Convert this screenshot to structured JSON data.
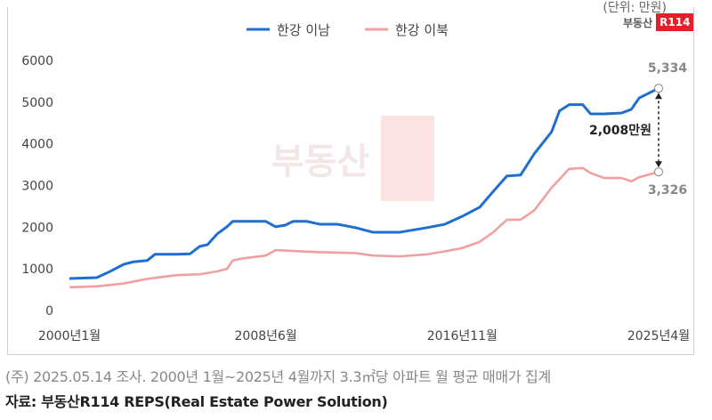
{
  "unit_label": "(단위: 만원)",
  "logo": {
    "text": "부동산",
    "badge": "R114"
  },
  "footnote": "(주) 2025.05.14 조사. 2000년 1월~2025년 4월까지 3.3㎡당 아파트 월 평균 매매가 집계",
  "source": "자료: 부동산R114 REPS(Real Estate Power Solution)",
  "chart_data": {
    "type": "line",
    "ylim": [
      0,
      6000
    ],
    "yticks": [
      0,
      1000,
      2000,
      3000,
      4000,
      5000,
      6000
    ],
    "xlim": [
      "2000-01",
      "2025-04"
    ],
    "xticks": [
      {
        "date": "2000-01",
        "label": "2000년1월"
      },
      {
        "date": "2008-06",
        "label": "2008년6월"
      },
      {
        "date": "2016-11",
        "label": "2016년11월"
      },
      {
        "date": "2025-04",
        "label": "2025년4월"
      }
    ],
    "grid": false,
    "legend": "top",
    "series": [
      {
        "name": "한강 이남",
        "color": "#1f6fd1",
        "end_label": "5,334",
        "points": [
          [
            "2000-01",
            770
          ],
          [
            "2001-03",
            790
          ],
          [
            "2001-10",
            940
          ],
          [
            "2002-05",
            1110
          ],
          [
            "2002-10",
            1170
          ],
          [
            "2003-05",
            1200
          ],
          [
            "2003-09",
            1350
          ],
          [
            "2004-08",
            1350
          ],
          [
            "2005-03",
            1360
          ],
          [
            "2005-08",
            1540
          ],
          [
            "2005-12",
            1580
          ],
          [
            "2006-05",
            1840
          ],
          [
            "2006-10",
            2010
          ],
          [
            "2007-01",
            2140
          ],
          [
            "2008-06",
            2140
          ],
          [
            "2008-11",
            2010
          ],
          [
            "2009-04",
            2050
          ],
          [
            "2009-08",
            2140
          ],
          [
            "2010-03",
            2140
          ],
          [
            "2010-10",
            2070
          ],
          [
            "2011-07",
            2070
          ],
          [
            "2012-04",
            1990
          ],
          [
            "2013-01",
            1880
          ],
          [
            "2014-03",
            1880
          ],
          [
            "2015-05",
            1990
          ],
          [
            "2016-02",
            2070
          ],
          [
            "2016-11",
            2260
          ],
          [
            "2017-08",
            2480
          ],
          [
            "2018-03",
            2860
          ],
          [
            "2018-10",
            3230
          ],
          [
            "2019-05",
            3250
          ],
          [
            "2019-12",
            3760
          ],
          [
            "2020-09",
            4290
          ],
          [
            "2021-01",
            4790
          ],
          [
            "2021-06",
            4940
          ],
          [
            "2022-01",
            4940
          ],
          [
            "2022-05",
            4720
          ],
          [
            "2022-12",
            4720
          ],
          [
            "2023-09",
            4740
          ],
          [
            "2024-02",
            4830
          ],
          [
            "2024-06",
            5100
          ],
          [
            "2025-04",
            5334
          ]
        ]
      },
      {
        "name": "한강 이북",
        "color": "#f0a0a0",
        "end_label": "3,326",
        "points": [
          [
            "2000-01",
            560
          ],
          [
            "2001-03",
            580
          ],
          [
            "2002-05",
            650
          ],
          [
            "2003-05",
            760
          ],
          [
            "2004-08",
            850
          ],
          [
            "2005-08",
            870
          ],
          [
            "2006-05",
            940
          ],
          [
            "2006-10",
            1000
          ],
          [
            "2007-01",
            1200
          ],
          [
            "2007-06",
            1250
          ],
          [
            "2008-06",
            1320
          ],
          [
            "2008-11",
            1450
          ],
          [
            "2009-08",
            1430
          ],
          [
            "2010-10",
            1400
          ],
          [
            "2012-04",
            1380
          ],
          [
            "2013-01",
            1320
          ],
          [
            "2014-03",
            1300
          ],
          [
            "2015-05",
            1350
          ],
          [
            "2016-02",
            1420
          ],
          [
            "2016-11",
            1500
          ],
          [
            "2017-08",
            1650
          ],
          [
            "2018-03",
            1880
          ],
          [
            "2018-10",
            2180
          ],
          [
            "2019-05",
            2180
          ],
          [
            "2019-12",
            2400
          ],
          [
            "2020-09",
            2950
          ],
          [
            "2021-06",
            3400
          ],
          [
            "2022-01",
            3420
          ],
          [
            "2022-05",
            3300
          ],
          [
            "2022-12",
            3180
          ],
          [
            "2023-09",
            3180
          ],
          [
            "2024-02",
            3100
          ],
          [
            "2024-06",
            3200
          ],
          [
            "2025-04",
            3326
          ]
        ]
      }
    ],
    "annotation": "2,008만원"
  }
}
